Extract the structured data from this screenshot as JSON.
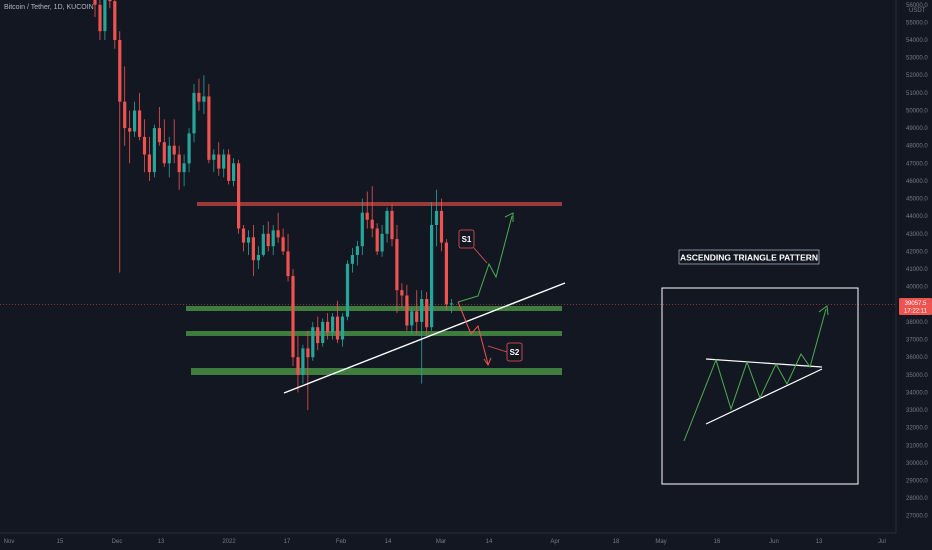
{
  "chart_data": {
    "type": "candlestick",
    "symbol_label": "Bitcoin / Tether, 1D, KUCOIN",
    "currency": "USDT",
    "x_ticks": [
      "Nov",
      "15",
      "Dec",
      "13",
      "2022",
      "17",
      "Feb",
      "14",
      "Mar",
      "14",
      "Apr",
      "18",
      "May",
      "16",
      "Jun",
      "13",
      "Jul"
    ],
    "y_ticks": [
      "56000.0",
      "55000.0",
      "54000.0",
      "53000.0",
      "52000.0",
      "51000.0",
      "50000.0",
      "49000.0",
      "48000.0",
      "47000.0",
      "46000.0",
      "45000.0",
      "44000.0",
      "43000.0",
      "42000.0",
      "41000.0",
      "40000.0",
      "39000.0",
      "38000.0",
      "37000.0",
      "36000.0",
      "35000.0",
      "34000.0",
      "33000.0",
      "32000.0",
      "31000.0",
      "30000.0",
      "29000.0",
      "28000.0",
      "27000.0"
    ],
    "ylim": [
      26500,
      57200
    ],
    "last_price": "39057.5",
    "countdown": "17:22:11",
    "candles": [
      [
        56500,
        57000,
        55300,
        56000
      ],
      [
        56000,
        56300,
        54000,
        54500
      ],
      [
        54500,
        56800,
        54000,
        56500
      ],
      [
        56500,
        57000,
        55800,
        56200
      ],
      [
        56200,
        56800,
        53500,
        54000
      ],
      [
        54000,
        54500,
        40800,
        50500
      ],
      [
        50500,
        52500,
        48000,
        49000
      ],
      [
        49000,
        50000,
        47000,
        48800
      ],
      [
        48800,
        50500,
        48500,
        50000
      ],
      [
        50000,
        51000,
        48300,
        48500
      ],
      [
        48500,
        49500,
        46500,
        47500
      ],
      [
        47500,
        48500,
        46000,
        46500
      ],
      [
        46500,
        49200,
        46200,
        49000
      ],
      [
        49000,
        50200,
        48000,
        48200
      ],
      [
        48200,
        49500,
        46800,
        47000
      ],
      [
        47000,
        48500,
        46200,
        48000
      ],
      [
        48000,
        49500,
        47000,
        47500
      ],
      [
        47500,
        48000,
        45500,
        46500
      ],
      [
        46500,
        47500,
        45700,
        47000
      ],
      [
        47000,
        49000,
        46500,
        48700
      ],
      [
        48700,
        51500,
        48200,
        51000
      ],
      [
        51000,
        51800,
        50000,
        50500
      ],
      [
        50500,
        52000,
        49800,
        50800
      ],
      [
        50800,
        51500,
        47000,
        47200
      ],
      [
        47200,
        47800,
        46500,
        47500
      ],
      [
        47500,
        48200,
        46300,
        46700
      ],
      [
        46700,
        47800,
        46200,
        47500
      ],
      [
        47500,
        47800,
        45800,
        46000
      ],
      [
        46000,
        47300,
        45700,
        47000
      ],
      [
        47000,
        47200,
        43000,
        43300
      ],
      [
        43300,
        43500,
        42000,
        42500
      ],
      [
        42500,
        43200,
        41800,
        42800
      ],
      [
        42800,
        43500,
        40600,
        41500
      ],
      [
        41500,
        42300,
        41000,
        41800
      ],
      [
        41800,
        43500,
        41700,
        43000
      ],
      [
        43000,
        43700,
        42000,
        42300
      ],
      [
        42300,
        43500,
        41800,
        43200
      ],
      [
        43200,
        44200,
        42500,
        42800
      ],
      [
        42800,
        43300,
        41800,
        42000
      ],
      [
        42000,
        43000,
        40300,
        40600
      ],
      [
        40600,
        41000,
        35500,
        36000
      ],
      [
        36000,
        37200,
        34000,
        35000
      ],
      [
        35000,
        36700,
        34500,
        36500
      ],
      [
        36500,
        37500,
        33000,
        36000
      ],
      [
        36000,
        38000,
        35800,
        37700
      ],
      [
        37700,
        38300,
        36400,
        36800
      ],
      [
        36800,
        38200,
        36600,
        38000
      ],
      [
        38000,
        38500,
        37000,
        37400
      ],
      [
        37400,
        38500,
        37000,
        38300
      ],
      [
        38300,
        39200,
        36800,
        37000
      ],
      [
        37000,
        38500,
        36600,
        38300
      ],
      [
        38300,
        41500,
        38100,
        41300
      ],
      [
        41300,
        42200,
        40800,
        41800
      ],
      [
        41800,
        42600,
        41200,
        42300
      ],
      [
        42300,
        45000,
        41800,
        44200
      ],
      [
        44200,
        45400,
        43300,
        43800
      ],
      [
        43800,
        45700,
        42800,
        43300
      ],
      [
        43300,
        43600,
        41800,
        42000
      ],
      [
        42000,
        43500,
        41700,
        43000
      ],
      [
        43000,
        44500,
        42500,
        44300
      ],
      [
        44300,
        44700,
        42300,
        42700
      ],
      [
        42700,
        43500,
        38500,
        39800
      ],
      [
        39800,
        40200,
        38800,
        39500
      ],
      [
        39500,
        40100,
        37500,
        37800
      ],
      [
        37800,
        38800,
        37300,
        38600
      ],
      [
        38600,
        39800,
        37300,
        38000
      ],
      [
        38000,
        39800,
        34500,
        39300
      ],
      [
        39300,
        39700,
        37300,
        37700
      ],
      [
        37700,
        44800,
        37500,
        43500
      ],
      [
        43500,
        45500,
        42300,
        44300
      ],
      [
        44300,
        45000,
        42000,
        42500
      ],
      [
        42500,
        42700,
        38700,
        39000
      ],
      [
        39000,
        39300,
        38500,
        39050
      ]
    ]
  },
  "annotations": {
    "title": "ASCENDING TRIANGLE PATTERN",
    "s1": "S1",
    "s2": "S2"
  },
  "colors": {
    "up": "#26a69a",
    "down": "#ef5350",
    "background": "#131722",
    "resistance": "#9c3a3a",
    "support": "#3e7d3e",
    "arrow_up": "#4caf50",
    "arrow_down": "#ef5350"
  }
}
